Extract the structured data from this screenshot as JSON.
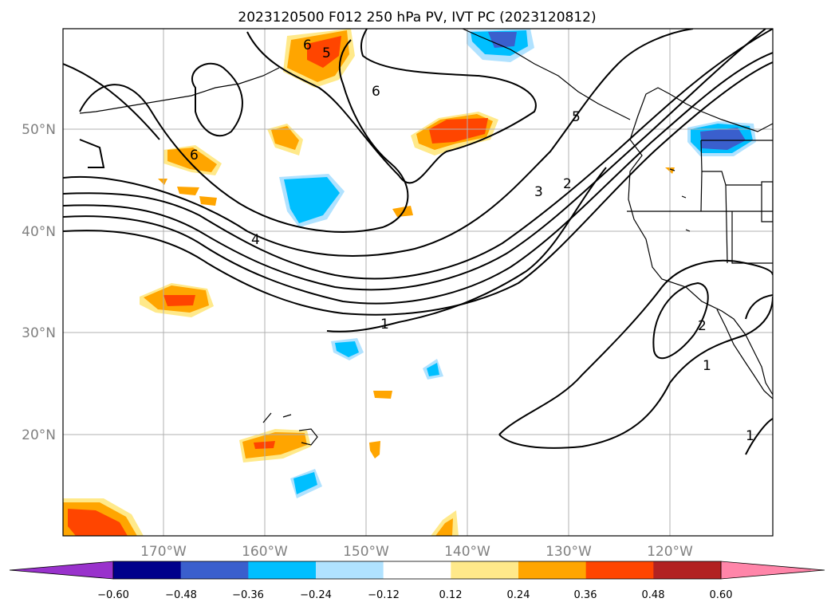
{
  "title": "2023120500 F012 250 hPa PV, IVT PC (2023120812)",
  "lat_labels": [
    "50°N",
    "40°N",
    "30°N",
    "20°N"
  ],
  "lon_labels": [
    "170°W",
    "160°W",
    "150°W",
    "140°W",
    "130°W",
    "120°W"
  ],
  "colorbar": {
    "tick_labels": [
      "−0.60",
      "−0.48",
      "−0.36",
      "−0.24",
      "−0.12",
      "0.12",
      "0.24",
      "0.36",
      "0.48",
      "0.60"
    ],
    "colors": [
      "#9932cc",
      "#00008b",
      "#3a5fcd",
      "#00bfff",
      "#b0e2ff",
      "#ffffff",
      "#ffe98a",
      "#ffa500",
      "#ff4500",
      "#b22222",
      "#ff85a9"
    ]
  },
  "contour_labels": [
    "6",
    "5",
    "6",
    "5",
    "4",
    "3",
    "2",
    "1",
    "2",
    "1",
    "1"
  ]
}
